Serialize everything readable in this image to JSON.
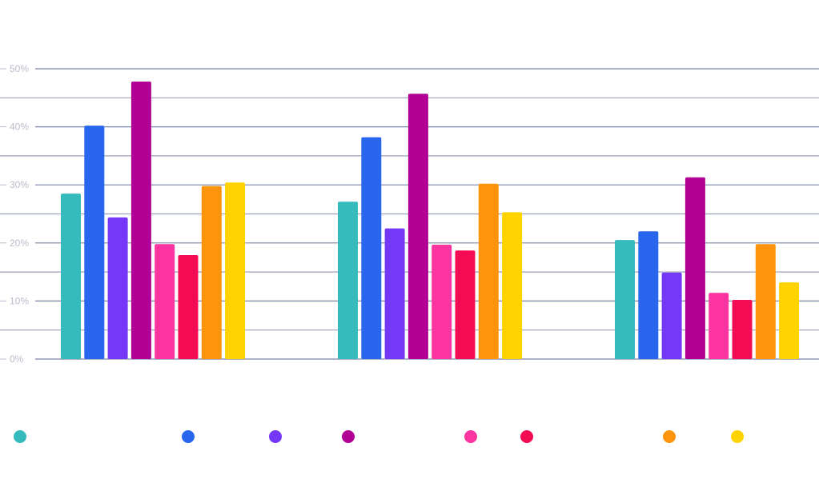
{
  "chart_data": {
    "type": "bar",
    "title": "",
    "xlabel": "",
    "ylabel": "",
    "ylim": [
      0,
      50
    ],
    "yticks": [
      "0%",
      "10%",
      "20%",
      "30%",
      "40%",
      "50%"
    ],
    "grid": true,
    "legend_placement": "bottom",
    "categories": [
      "",
      "",
      ""
    ],
    "series": [
      {
        "name": "",
        "color": "#35bbbb",
        "values": [
          28.5,
          27.1,
          20.5
        ]
      },
      {
        "name": "",
        "color": "#2866ee",
        "values": [
          40.2,
          38.2,
          22.0
        ]
      },
      {
        "name": "",
        "color": "#7538f8",
        "values": [
          24.4,
          22.5,
          14.9
        ]
      },
      {
        "name": "",
        "color": "#b10295",
        "values": [
          47.8,
          45.7,
          31.3
        ]
      },
      {
        "name": "",
        "color": "#fc34a0",
        "values": [
          19.8,
          19.7,
          11.4
        ]
      },
      {
        "name": "",
        "color": "#f30b53",
        "values": [
          17.9,
          18.7,
          10.2
        ]
      },
      {
        "name": "",
        "color": "#fe940b",
        "values": [
          29.8,
          30.2,
          19.8
        ]
      },
      {
        "name": "",
        "color": "#ffd300",
        "values": [
          30.4,
          25.3,
          13.2
        ]
      }
    ]
  }
}
